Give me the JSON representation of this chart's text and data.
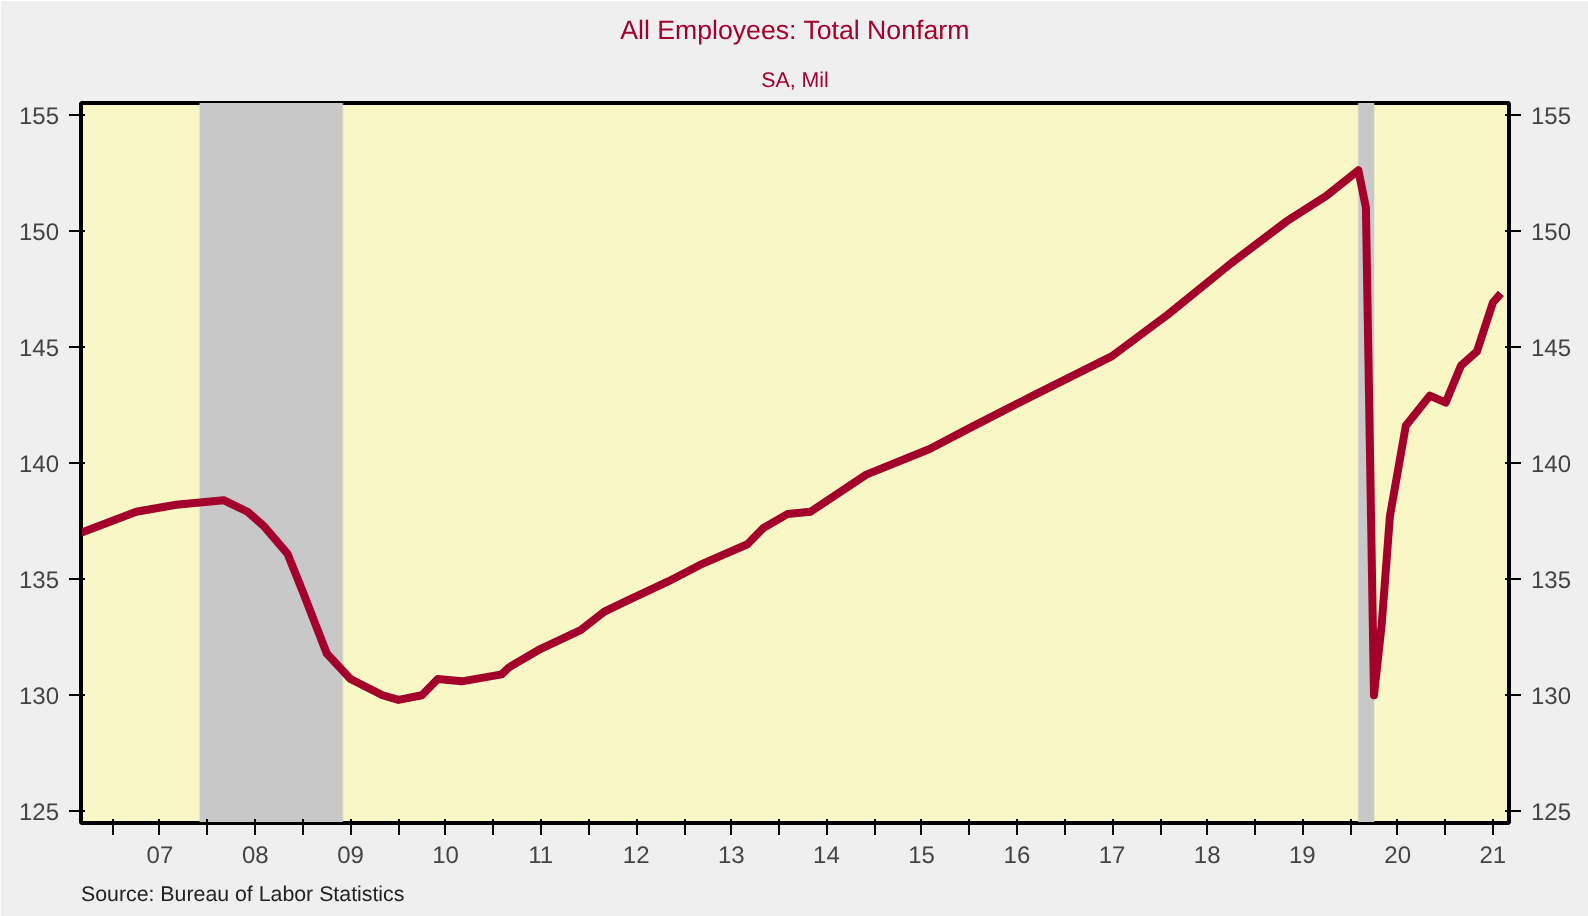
{
  "chart_data": {
    "type": "line",
    "title": "All Employees: Total Nonfarm",
    "subtitle": "SA, Mil",
    "annotations": [
      "Source:  Bureau of Labor Statistics"
    ],
    "x": [
      "2006-09",
      "2007-04",
      "2007-09",
      "2008-03",
      "2008-06",
      "2008-08",
      "2008-11",
      "2009-01",
      "2009-04",
      "2009-07",
      "2009-11",
      "2010-01",
      "2010-04",
      "2010-06",
      "2010-09",
      "2011-02",
      "2011-03",
      "2011-07",
      "2011-12",
      "2012-03",
      "2012-06",
      "2012-11",
      "2013-03",
      "2013-09",
      "2013-11",
      "2014-02",
      "2014-05",
      "2014-12",
      "2015-08",
      "2016-01",
      "2016-09",
      "2017-07",
      "2018-02",
      "2018-10",
      "2019-05",
      "2019-10",
      "2020-02",
      "2020-03",
      "2020-04",
      "2020-05",
      "2020-06",
      "2020-08",
      "2020-11",
      "2021-01",
      "2021-03",
      "2021-05",
      "2021-07",
      "2021-08"
    ],
    "series": [
      {
        "color": "#a3002b",
        "values": [
          137.0,
          137.9,
          138.2,
          138.4,
          137.9,
          137.3,
          136.1,
          134.4,
          131.8,
          130.7,
          130.0,
          129.8,
          130.0,
          130.7,
          130.6,
          130.9,
          131.2,
          132.0,
          132.8,
          133.6,
          134.1,
          134.9,
          135.6,
          136.5,
          137.2,
          137.8,
          137.9,
          139.5,
          140.6,
          141.5,
          142.9,
          144.6,
          146.4,
          148.6,
          150.4,
          151.5,
          152.6,
          151.0,
          130.0,
          133.1,
          137.7,
          141.6,
          142.9,
          142.6,
          144.2,
          144.8,
          146.9,
          147.3
        ]
      }
    ],
    "xlim": [
      "2006-09",
      "2021-09"
    ],
    "ylim": [
      124.5,
      155.5
    ],
    "y2lim": [
      124.5,
      155.5
    ],
    "xticks": [
      {
        "value": "2007-01",
        "label": null
      },
      {
        "value": "2007-07",
        "label": "07"
      },
      {
        "value": "2008-01",
        "label": null
      },
      {
        "value": "2008-07",
        "label": "08"
      },
      {
        "value": "2009-01",
        "label": null
      },
      {
        "value": "2009-07",
        "label": "09"
      },
      {
        "value": "2010-01",
        "label": null
      },
      {
        "value": "2010-07",
        "label": "10"
      },
      {
        "value": "2011-01",
        "label": null
      },
      {
        "value": "2011-07",
        "label": "11"
      },
      {
        "value": "2012-01",
        "label": null
      },
      {
        "value": "2012-07",
        "label": "12"
      },
      {
        "value": "2013-01",
        "label": null
      },
      {
        "value": "2013-07",
        "label": "13"
      },
      {
        "value": "2014-01",
        "label": null
      },
      {
        "value": "2014-07",
        "label": "14"
      },
      {
        "value": "2015-01",
        "label": null
      },
      {
        "value": "2015-07",
        "label": "15"
      },
      {
        "value": "2016-01",
        "label": null
      },
      {
        "value": "2016-07",
        "label": "16"
      },
      {
        "value": "2017-01",
        "label": null
      },
      {
        "value": "2017-07",
        "label": "17"
      },
      {
        "value": "2018-01",
        "label": null
      },
      {
        "value": "2018-07",
        "label": "18"
      },
      {
        "value": "2019-01",
        "label": null
      },
      {
        "value": "2019-07",
        "label": "19"
      },
      {
        "value": "2020-01",
        "label": null
      },
      {
        "value": "2020-07",
        "label": "20"
      },
      {
        "value": "2021-01",
        "label": null
      },
      {
        "value": "2021-07",
        "label": "21"
      }
    ],
    "yticks": [
      125,
      130,
      135,
      140,
      145,
      150,
      155
    ],
    "y2ticks": [
      125,
      130,
      135,
      140,
      145,
      150,
      155
    ],
    "bands": [
      {
        "axis": "x",
        "from": "2007-12",
        "to": "2009-06",
        "color": "#c8c8c8"
      },
      {
        "axis": "x",
        "from": "2020-02",
        "to": "2020-04",
        "color": "#c8c8c8"
      }
    ],
    "grid": false
  }
}
